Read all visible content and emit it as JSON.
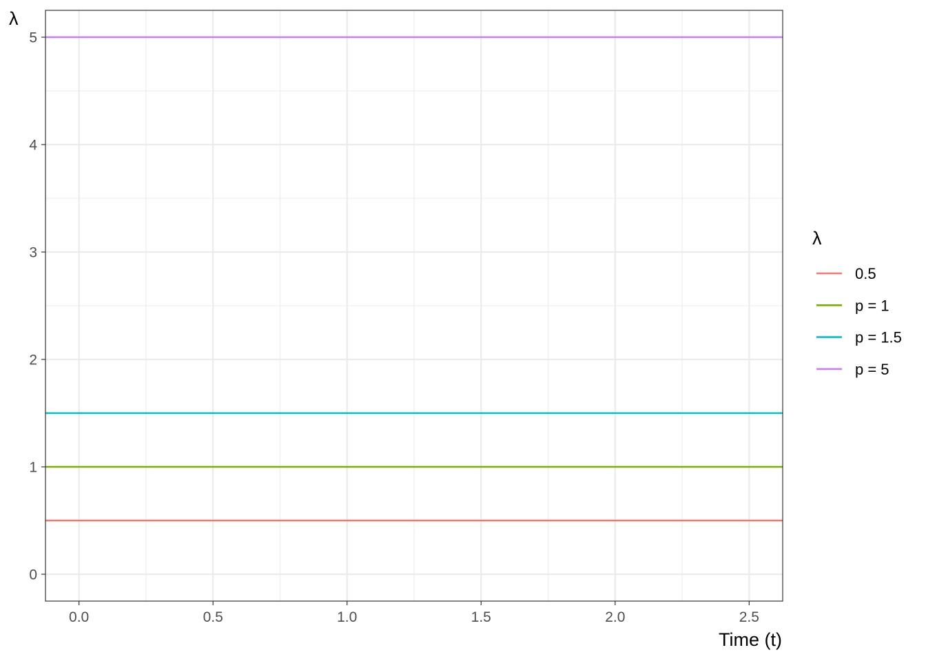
{
  "chart_data": {
    "type": "line",
    "title": "",
    "xlabel": "Time (t)",
    "ylabel": "λ",
    "xlim": [
      -0.125,
      2.625
    ],
    "ylim": [
      -0.25,
      5.25
    ],
    "x_ticks": [
      0.0,
      0.5,
      1.0,
      1.5,
      2.0,
      2.5
    ],
    "x_tick_labels": [
      "0.0",
      "0.5",
      "1.0",
      "1.5",
      "2.0",
      "2.5"
    ],
    "y_ticks": [
      0,
      1,
      2,
      3,
      4,
      5
    ],
    "y_tick_labels": [
      "0",
      "1",
      "2",
      "3",
      "4",
      "5"
    ],
    "grid": true,
    "legend": {
      "title": "λ",
      "position": "right"
    },
    "series": [
      {
        "name": "0.5",
        "color": "#F8766D",
        "x": [
          -0.125,
          2.625
        ],
        "y": [
          0.5,
          0.5
        ]
      },
      {
        "name": "p = 1",
        "color": "#7CAE00",
        "x": [
          -0.125,
          2.625
        ],
        "y": [
          1,
          1
        ]
      },
      {
        "name": "p = 1.5",
        "color": "#00BFC4",
        "x": [
          -0.125,
          2.625
        ],
        "y": [
          1.5,
          1.5
        ]
      },
      {
        "name": "p = 5",
        "color": "#C77CFF",
        "x": [
          -0.125,
          2.625
        ],
        "y": [
          5,
          5
        ]
      }
    ]
  }
}
